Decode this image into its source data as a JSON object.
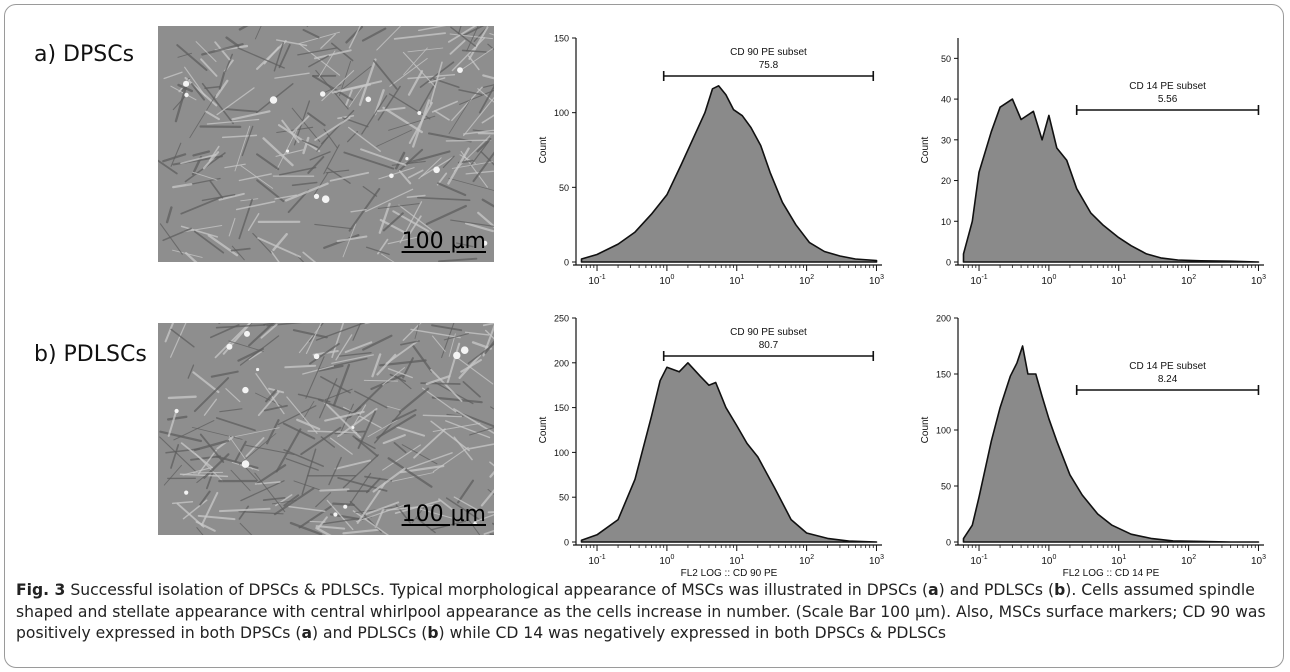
{
  "rows": [
    {
      "label": "a) DPSCs",
      "scale_bar": "100 µm"
    },
    {
      "label": "b) PDLSCs",
      "scale_bar": "100 µm"
    }
  ],
  "chart_data": [
    {
      "type": "area",
      "id": "a-cd90",
      "gate_label": "CD  90 PE subset",
      "gate_value": "75.8",
      "gate_range": [
        0.9,
        900
      ],
      "ylabel": "Count",
      "xlabel": "",
      "xscale": "log",
      "xlim": [
        0.05,
        1200
      ],
      "ylim": [
        0,
        150
      ],
      "yticks": [
        0,
        50,
        100,
        150
      ],
      "x": [
        0.06,
        0.1,
        0.2,
        0.35,
        0.6,
        1,
        1.6,
        2.5,
        3.5,
        4.5,
        5.5,
        7,
        9,
        12,
        16,
        22,
        30,
        45,
        70,
        110,
        180,
        300,
        500,
        1000
      ],
      "values": [
        2,
        5,
        12,
        20,
        32,
        45,
        65,
        85,
        100,
        116,
        118,
        112,
        102,
        98,
        90,
        78,
        60,
        40,
        25,
        13,
        7,
        4,
        2,
        1
      ]
    },
    {
      "type": "area",
      "id": "a-cd14",
      "gate_label": "CD  14 PE subset",
      "gate_value": "5.56",
      "gate_range": [
        2.5,
        1000
      ],
      "ylabel": "Count",
      "xlabel": "",
      "xscale": "log",
      "xlim": [
        0.05,
        1200
      ],
      "ylim": [
        0,
        55
      ],
      "yticks": [
        0,
        10,
        20,
        30,
        40,
        50
      ],
      "x": [
        0.06,
        0.08,
        0.1,
        0.15,
        0.2,
        0.3,
        0.4,
        0.6,
        0.8,
        1,
        1.3,
        1.8,
        2.5,
        4,
        6,
        10,
        15,
        25,
        40,
        70,
        150,
        400,
        1000
      ],
      "values": [
        2,
        10,
        22,
        32,
        38,
        40,
        35,
        37,
        30,
        36,
        28,
        25,
        18,
        12,
        9,
        6,
        4,
        2,
        1,
        0.5,
        0.3,
        0.2,
        0
      ]
    },
    {
      "type": "area",
      "id": "b-cd90",
      "gate_label": "CD  90 PE subset",
      "gate_value": "80.7",
      "gate_range": [
        0.9,
        900
      ],
      "ylabel": "Count",
      "xlabel": "FL2 LOG :: CD  90 PE",
      "xscale": "log",
      "xlim": [
        0.05,
        1200
      ],
      "ylim": [
        0,
        250
      ],
      "yticks": [
        0,
        50,
        100,
        150,
        200,
        250
      ],
      "x": [
        0.06,
        0.1,
        0.2,
        0.35,
        0.6,
        0.8,
        1,
        1.5,
        2,
        3,
        4,
        5,
        7,
        10,
        14,
        20,
        35,
        60,
        100,
        200,
        400,
        1000
      ],
      "values": [
        2,
        8,
        25,
        70,
        140,
        180,
        195,
        190,
        200,
        185,
        175,
        178,
        150,
        130,
        110,
        95,
        60,
        25,
        10,
        4,
        1,
        0
      ]
    },
    {
      "type": "area",
      "id": "b-cd14",
      "gate_label": "CD  14 PE subset",
      "gate_value": "8.24",
      "gate_range": [
        2.5,
        1000
      ],
      "ylabel": "Count",
      "xlabel": "FL2 LOG :: CD  14 PE",
      "xscale": "log",
      "xlim": [
        0.05,
        1200
      ],
      "ylim": [
        0,
        200
      ],
      "yticks": [
        0,
        50,
        100,
        150,
        200
      ],
      "x": [
        0.06,
        0.08,
        0.1,
        0.15,
        0.2,
        0.28,
        0.35,
        0.42,
        0.5,
        0.65,
        0.8,
        1,
        1.3,
        2,
        3,
        5,
        8,
        15,
        30,
        60,
        150,
        400,
        1000
      ],
      "values": [
        3,
        15,
        40,
        90,
        120,
        148,
        160,
        175,
        150,
        150,
        130,
        110,
        90,
        60,
        42,
        25,
        15,
        7,
        3,
        1,
        0.5,
        0,
        0
      ]
    }
  ],
  "caption": {
    "fig_label": "Fig. 3",
    "text": "  Successful isolation of DPSCs & PDLSCs. Typical morphological appearance of MSCs was illustrated in DPSCs (a) and PDLSCs (b). Cells assumed spindle shaped and stellate appearance with central whirlpool appearance as the cells increase in number. (Scale Bar 100 µm). Also, MSCs surface markers; CD 90 was positively expressed in both DPSCs (a) and PDLSCs (b) while CD 14 was negatively expressed in both DPSCs & PDLSCs"
  }
}
